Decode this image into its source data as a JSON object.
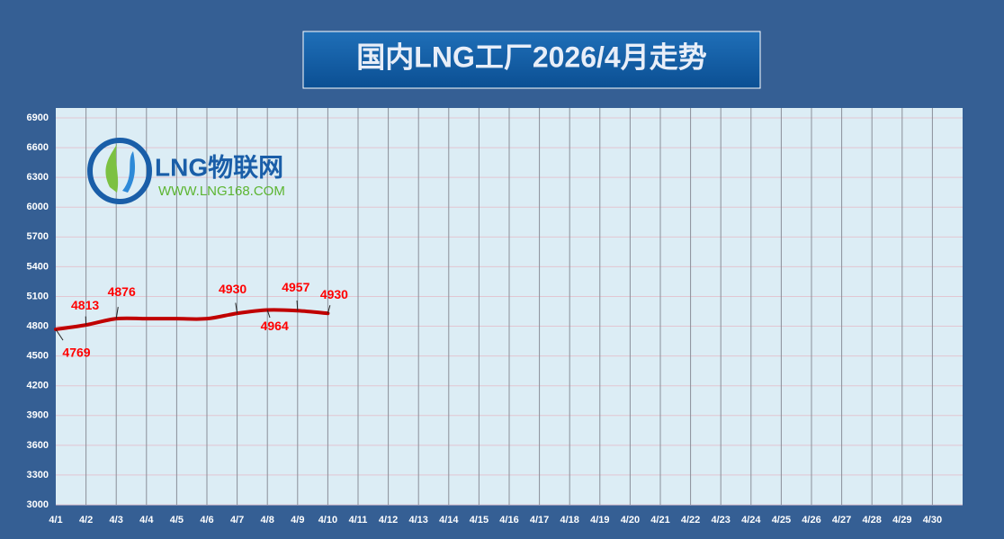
{
  "chart_data": {
    "type": "line",
    "title": "国内LNG工厂2026/4月走势",
    "logo": {
      "name": "LNG物联网",
      "url": "WWW.LNG168.COM"
    },
    "categories": [
      "4/1",
      "4/2",
      "4/3",
      "4/4",
      "4/5",
      "4/6",
      "4/7",
      "4/8",
      "4/9",
      "4/10",
      "4/11",
      "4/12",
      "4/13",
      "4/14",
      "4/15",
      "4/16",
      "4/17",
      "4/18",
      "4/19",
      "4/20",
      "4/21",
      "4/22",
      "4/23",
      "4/24",
      "4/25",
      "4/26",
      "4/27",
      "4/28",
      "4/29",
      "4/30"
    ],
    "series": [
      {
        "name": "LNG",
        "color": "#c00000",
        "values": [
          4769,
          4813,
          4876,
          4876,
          4876,
          4876,
          4930,
          4964,
          4957,
          4930,
          null,
          null,
          null,
          null,
          null,
          null,
          null,
          null,
          null,
          null,
          null,
          null,
          null,
          null,
          null,
          null,
          null,
          null,
          null,
          null
        ]
      }
    ],
    "ylim": [
      3000,
      7000
    ],
    "yticks": [
      3000,
      3300,
      3600,
      3900,
      4200,
      4500,
      4800,
      5100,
      5400,
      5700,
      6000,
      6300,
      6600,
      6900
    ],
    "grid": true
  }
}
